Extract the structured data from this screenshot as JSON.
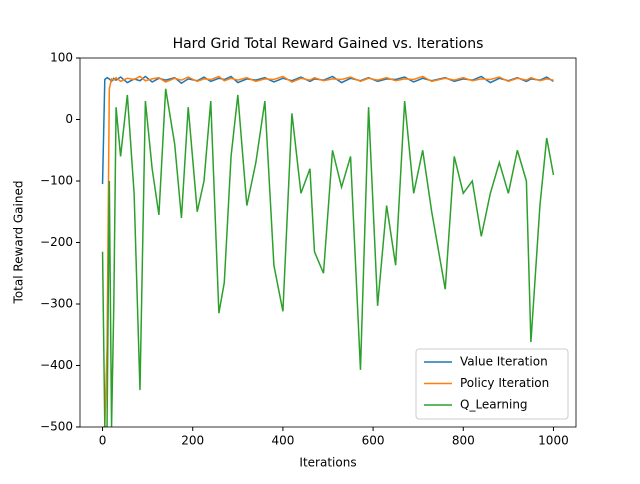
{
  "chart_data": {
    "type": "line",
    "title": "Hard Grid Total Reward Gained vs. Iterations",
    "x_label": "Iterations",
    "y_label": "Total Reward Gained",
    "x": [
      0,
      5,
      10,
      15,
      20,
      25,
      30,
      40,
      55,
      70,
      83,
      95,
      110,
      125,
      140,
      160,
      175,
      190,
      210,
      225,
      240,
      258,
      270,
      285,
      300,
      320,
      340,
      360,
      380,
      400,
      420,
      440,
      460,
      470,
      490,
      510,
      530,
      550,
      572,
      590,
      610,
      630,
      650,
      670,
      690,
      710,
      730,
      760,
      780,
      800,
      820,
      840,
      860,
      880,
      900,
      920,
      940,
      950,
      970,
      985,
      1000
    ],
    "series": [
      {
        "name": "Value Iteration",
        "color": "#1f77b4",
        "values": [
          -105,
          65,
          68,
          66,
          62,
          67,
          64,
          69,
          60,
          66,
          63,
          70,
          61,
          67,
          64,
          68,
          59,
          66,
          63,
          69,
          62,
          67,
          65,
          70,
          60,
          66,
          64,
          68,
          61,
          67,
          63,
          69,
          62,
          66,
          64,
          70,
          60,
          67,
          63,
          68,
          62,
          66,
          65,
          69,
          61,
          67,
          63,
          68,
          62,
          66,
          64,
          70,
          60,
          67,
          63,
          68,
          62,
          66,
          64,
          69,
          62
        ]
      },
      {
        "name": "Policy Iteration",
        "color": "#ff7f0e",
        "values": [
          -500,
          -500,
          -370,
          50,
          66,
          64,
          68,
          62,
          67,
          65,
          70,
          63,
          66,
          68,
          61,
          67,
          64,
          69,
          62,
          66,
          65,
          70,
          63,
          67,
          64,
          68,
          62,
          66,
          65,
          70,
          61,
          67,
          64,
          68,
          63,
          66,
          65,
          69,
          62,
          67,
          64,
          68,
          63,
          66,
          65,
          70,
          62,
          67,
          64,
          68,
          63,
          66,
          65,
          69,
          62,
          67,
          64,
          68,
          63,
          66,
          64
        ]
      },
      {
        "name": "Q_Learning",
        "color": "#2ca02c",
        "values": [
          -215,
          -500,
          -500,
          -100,
          -500,
          -300,
          20,
          -60,
          40,
          -120,
          -440,
          30,
          -80,
          -155,
          50,
          -40,
          -160,
          20,
          -150,
          -100,
          30,
          -315,
          -265,
          -60,
          40,
          -140,
          -70,
          30,
          -237,
          -312,
          10,
          -120,
          -80,
          -215,
          -250,
          -50,
          -110,
          -60,
          -407,
          20,
          -303,
          -140,
          -237,
          30,
          -120,
          -50,
          -150,
          -276,
          -60,
          -120,
          -100,
          -190,
          -120,
          -70,
          -120,
          -50,
          -100,
          -362,
          -140,
          -30,
          -90
        ]
      }
    ],
    "xlim": [
      -50,
      1050
    ],
    "ylim": [
      -500,
      100
    ],
    "xticks": [
      0,
      200,
      400,
      600,
      800,
      1000
    ],
    "yticks": [
      {
        "value": -500,
        "label": "−500"
      },
      {
        "value": -400,
        "label": "−400"
      },
      {
        "value": -300,
        "label": "−300"
      },
      {
        "value": -200,
        "label": "−200"
      },
      {
        "value": -100,
        "label": "−100"
      },
      0,
      100
    ],
    "legend": "lower right"
  }
}
